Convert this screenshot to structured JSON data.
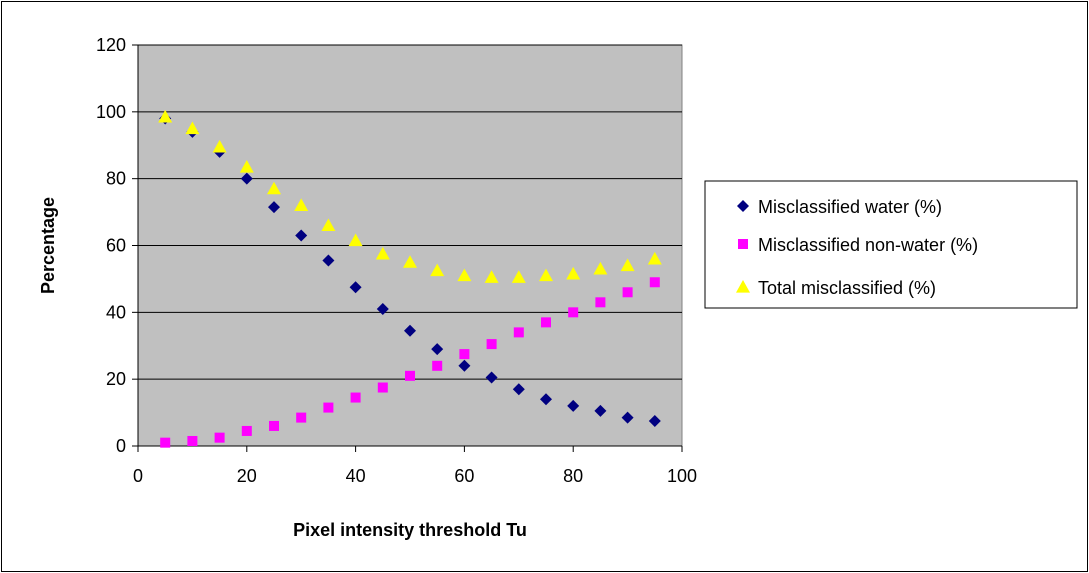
{
  "chart_data": {
    "type": "scatter",
    "title": "",
    "xlabel": "Pixel intensity threshold Tu",
    "ylabel": "Percentage",
    "xlim": [
      0,
      100
    ],
    "ylim": [
      0,
      120
    ],
    "x_ticks": [
      "0",
      "20",
      "40",
      "60",
      "80",
      "100"
    ],
    "y_ticks": [
      "0",
      "20",
      "40",
      "60",
      "80",
      "100",
      "120"
    ],
    "grid": "horizontal",
    "plot_background": "#c0c0c0",
    "legend_position": "right",
    "x": [
      5,
      10,
      15,
      20,
      25,
      30,
      35,
      40,
      45,
      50,
      55,
      60,
      65,
      70,
      75,
      80,
      85,
      90,
      95
    ],
    "series": [
      {
        "name": "Misclassified water (%)",
        "marker": "diamond",
        "color": "#000080",
        "values": [
          98,
          94,
          88,
          80,
          71.5,
          63,
          55.5,
          47.5,
          41,
          34.5,
          29,
          24,
          20.5,
          17,
          14,
          12,
          10.5,
          8.5,
          7.5
        ]
      },
      {
        "name": "Misclassified non-water (%)",
        "marker": "square",
        "color": "#ff00ff",
        "values": [
          1,
          1.5,
          2.5,
          4.5,
          6,
          8.5,
          11.5,
          14.5,
          17.5,
          21,
          24,
          27.5,
          30.5,
          34,
          37,
          40,
          43,
          46,
          49
        ]
      },
      {
        "name": "Total misclassified (%)",
        "marker": "triangle",
        "color": "#ffff00",
        "values": [
          98.5,
          95,
          89.5,
          83.5,
          77,
          72,
          66,
          61.5,
          57.5,
          55,
          52.5,
          51,
          50.5,
          50.5,
          51,
          51.5,
          53,
          54,
          56
        ]
      }
    ]
  }
}
